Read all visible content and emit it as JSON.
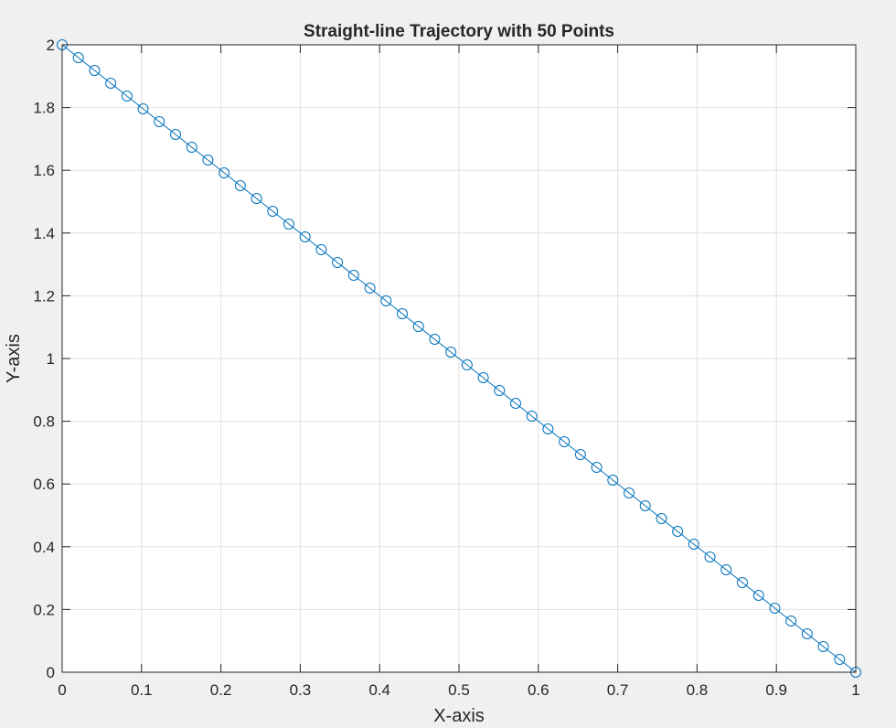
{
  "chart_data": {
    "type": "line",
    "title": "Straight-line Trajectory with 50 Points",
    "xlabel": "X-axis",
    "ylabel": "Y-axis",
    "xlim": [
      0,
      1
    ],
    "ylim": [
      0,
      2
    ],
    "grid": true,
    "marker": "circle-open",
    "line_color": "#0072bd",
    "xticks": [
      "0",
      "0.1",
      "0.2",
      "0.3",
      "0.4",
      "0.5",
      "0.6",
      "0.7",
      "0.8",
      "0.9",
      "1"
    ],
    "yticks": [
      "0",
      "0.2",
      "0.4",
      "0.6",
      "0.8",
      "1",
      "1.2",
      "1.4",
      "1.6",
      "1.8",
      "2"
    ],
    "series": [
      {
        "x": [
          0,
          0.0204,
          0.0408,
          0.0612,
          0.0816,
          0.102,
          0.1224,
          0.1429,
          0.1633,
          0.1837,
          0.2041,
          0.2245,
          0.2449,
          0.2653,
          0.2857,
          0.3061,
          0.3265,
          0.3469,
          0.3673,
          0.3878,
          0.4082,
          0.4286,
          0.449,
          0.4694,
          0.4898,
          0.5102,
          0.5306,
          0.551,
          0.5714,
          0.5918,
          0.6122,
          0.6327,
          0.6531,
          0.6735,
          0.6939,
          0.7143,
          0.7347,
          0.7551,
          0.7755,
          0.7959,
          0.8163,
          0.8367,
          0.8571,
          0.8776,
          0.898,
          0.9184,
          0.9388,
          0.9592,
          0.9796,
          1
        ],
        "y": [
          2,
          1.9592,
          1.9184,
          1.8776,
          1.8367,
          1.7959,
          1.7551,
          1.7143,
          1.6735,
          1.6327,
          1.5918,
          1.551,
          1.5102,
          1.4694,
          1.4286,
          1.3878,
          1.3469,
          1.3061,
          1.2653,
          1.2245,
          1.1837,
          1.1429,
          1.102,
          1.0612,
          1.0204,
          0.9796,
          0.9388,
          0.898,
          0.8571,
          0.8163,
          0.7755,
          0.7347,
          0.6939,
          0.6531,
          0.6122,
          0.5714,
          0.5306,
          0.4898,
          0.449,
          0.4082,
          0.3673,
          0.3265,
          0.2857,
          0.2449,
          0.2041,
          0.1633,
          0.1224,
          0.0816,
          0.0408,
          0
        ]
      }
    ]
  }
}
